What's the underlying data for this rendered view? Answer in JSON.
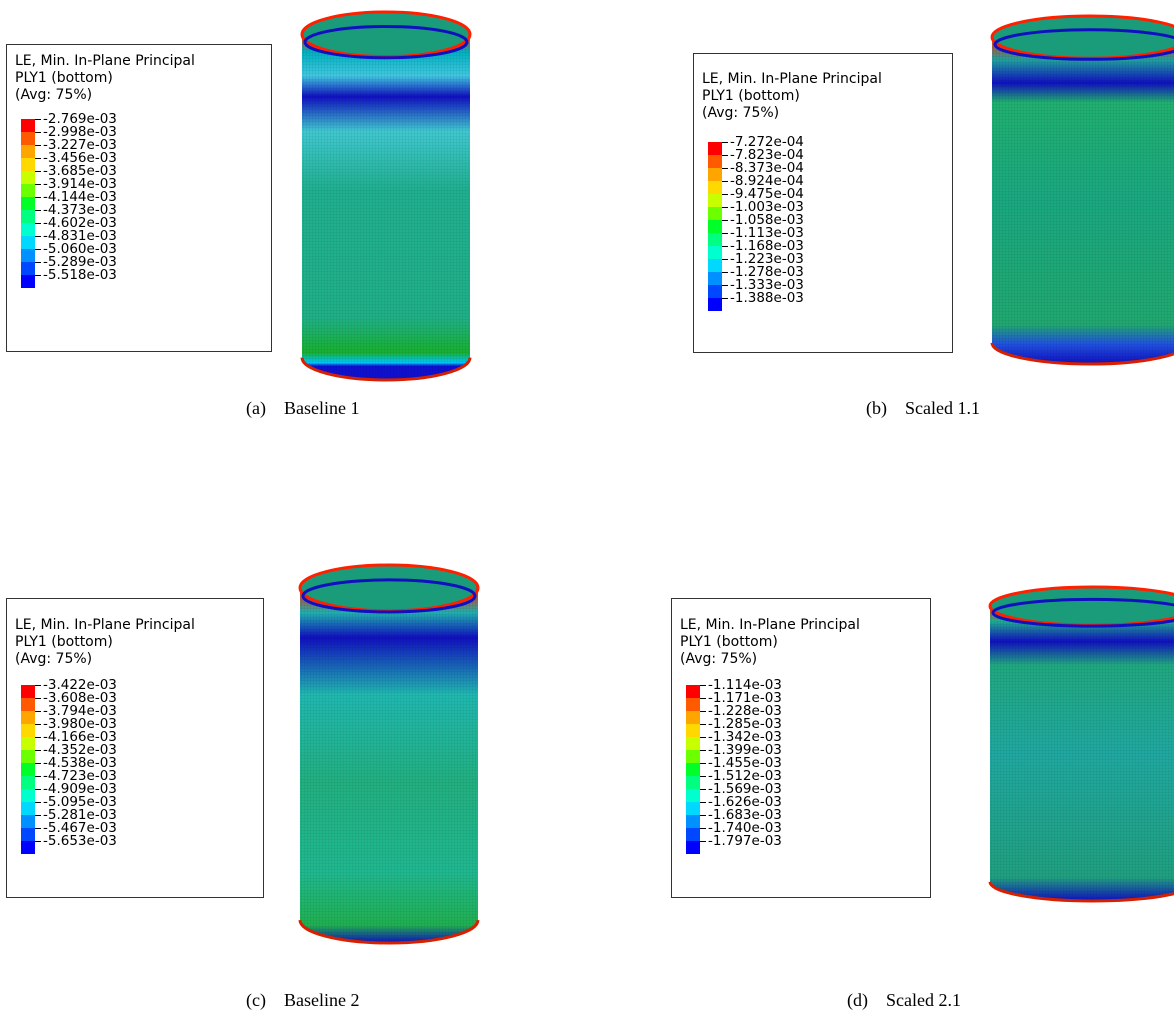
{
  "band_colors": [
    "#ff0000",
    "#ff5a00",
    "#ffa500",
    "#ffd800",
    "#c8ff00",
    "#6cff00",
    "#00ff28",
    "#00ff80",
    "#00ffcf",
    "#00d8ff",
    "#0090ff",
    "#0048ff",
    "#0000ff"
  ],
  "panels": [
    {
      "header": [
        "LE, Min. In-Plane Principal",
        "PLY1 (bottom)",
        "(Avg: 75%)"
      ],
      "values": [
        "-2.769e-03",
        "-2.998e-03",
        "-3.227e-03",
        "-3.456e-03",
        "-3.685e-03",
        "-3.914e-03",
        "-4.144e-03",
        "-4.373e-03",
        "-4.602e-03",
        "-4.831e-03",
        "-5.060e-03",
        "-5.289e-03",
        "-5.518e-03"
      ],
      "caption": "(a) Baseline 1"
    },
    {
      "header": [
        "LE, Min. In-Plane Principal",
        "PLY1 (bottom)",
        "(Avg: 75%)"
      ],
      "values": [
        "-7.272e-04",
        "-7.823e-04",
        "-8.373e-04",
        "-8.924e-04",
        "-9.475e-04",
        "-1.003e-03",
        "-1.058e-03",
        "-1.113e-03",
        "-1.168e-03",
        "-1.223e-03",
        "-1.278e-03",
        "-1.333e-03",
        "-1.388e-03"
      ],
      "caption": "(b) Scaled 1.1"
    },
    {
      "header": [
        "LE, Min. In-Plane Principal",
        "PLY1 (bottom)",
        "(Avg: 75%)"
      ],
      "values": [
        "-3.422e-03",
        "-3.608e-03",
        "-3.794e-03",
        "-3.980e-03",
        "-4.166e-03",
        "-4.352e-03",
        "-4.538e-03",
        "-4.723e-03",
        "-4.909e-03",
        "-5.095e-03",
        "-5.281e-03",
        "-5.467e-03",
        "-5.653e-03"
      ],
      "caption": "(c) Baseline 2"
    },
    {
      "header": [
        "LE, Min. In-Plane Principal",
        "PLY1 (bottom)",
        "(Avg: 75%)"
      ],
      "values": [
        "-1.114e-03",
        "-1.171e-03",
        "-1.228e-03",
        "-1.285e-03",
        "-1.342e-03",
        "-1.399e-03",
        "-1.455e-03",
        "-1.512e-03",
        "-1.569e-03",
        "-1.626e-03",
        "-1.683e-03",
        "-1.740e-03",
        "-1.797e-03"
      ],
      "caption": "(d) Scaled 2.1"
    }
  ]
}
